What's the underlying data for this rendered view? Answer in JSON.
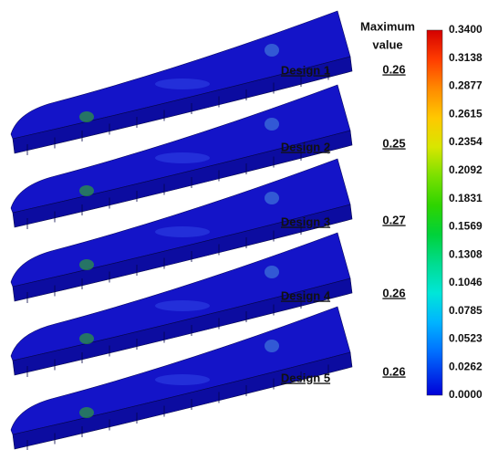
{
  "legend": {
    "title_line1": "Maximum",
    "title_line2": "value",
    "ticks": [
      "0.3400",
      "0.3138",
      "0.2877",
      "0.2615",
      "0.2354",
      "0.2092",
      "0.1831",
      "0.1569",
      "0.1308",
      "0.1046",
      "0.0785",
      "0.0523",
      "0.0262",
      "0.0000"
    ]
  },
  "designs": [
    {
      "label": "Design 1",
      "max_value": "0.26"
    },
    {
      "label": "Design 2",
      "max_value": "0.25"
    },
    {
      "label": "Design 3",
      "max_value": "0.27"
    },
    {
      "label": "Design 4",
      "max_value": "0.26"
    },
    {
      "label": "Design 5",
      "max_value": "0.26"
    }
  ]
}
